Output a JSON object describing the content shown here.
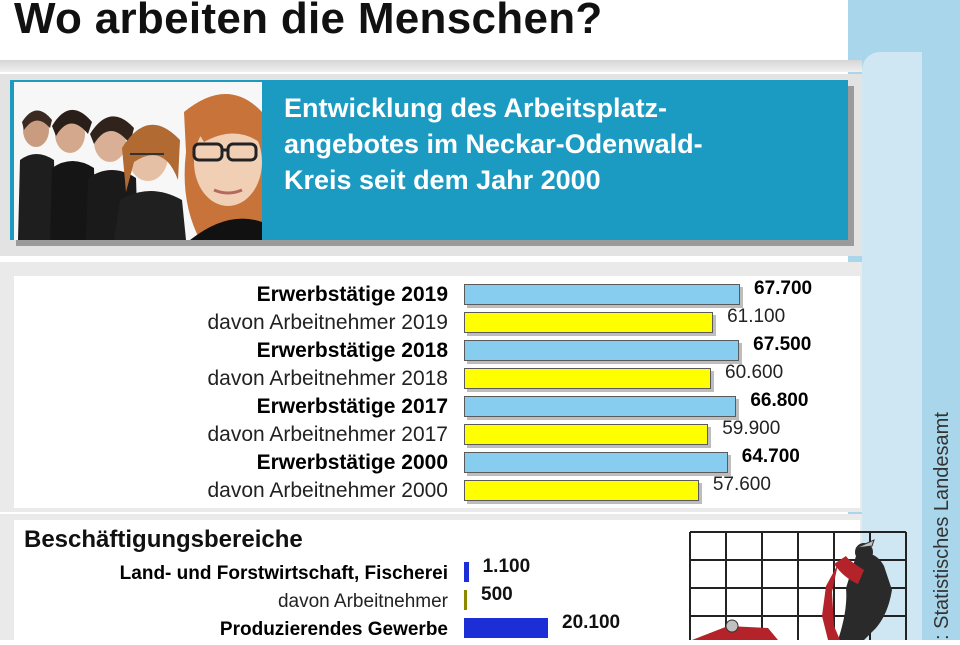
{
  "title": "Wo arbeiten die Menschen?",
  "subtitle": "Entwicklung des Arbeitsplatz-\nangebotes im Neckar-Odenwald-\nKreis seit dem Jahr 2000",
  "source": ": Statistisches Landesamt",
  "colors": {
    "header_blue": "#1b9ac2",
    "bar_light_blue": "#87cdef",
    "bar_yellow": "#ffff00",
    "bar_dark_blue": "#1c2fd6",
    "bar_olive": "#8a8a00"
  },
  "chart_data": [
    {
      "type": "bar",
      "orientation": "horizontal",
      "categories": [
        "Erwerbstätige 2019",
        "davon Arbeitnehmer 2019",
        "Erwerbstätige 2018",
        "davon Arbeitnehmer 2018",
        "Erwerbstätige 2017",
        "davon Arbeitnehmer 2017",
        "Erwerbstätige 2000",
        "davon Arbeitnehmer 2000"
      ],
      "values": [
        67700,
        61100,
        67500,
        60600,
        66800,
        59900,
        64700,
        57600
      ],
      "value_labels": [
        "67.700",
        "61.100",
        "67.500",
        "60.600",
        "66.800",
        "59.900",
        "64.700",
        "57.600"
      ],
      "bold": [
        true,
        false,
        true,
        false,
        true,
        false,
        true,
        false
      ],
      "bar_colors": [
        "#87cdef",
        "#ffff00",
        "#87cdef",
        "#ffff00",
        "#87cdef",
        "#ffff00",
        "#87cdef",
        "#ffff00"
      ],
      "title": "",
      "xlabel": "",
      "ylabel": "",
      "xlim": [
        0,
        70000
      ]
    },
    {
      "type": "bar",
      "orientation": "horizontal",
      "title": "Beschäftigungsbereiche",
      "categories": [
        "Land- und Forstwirtschaft, Fischerei",
        "davon Arbeitnehmer",
        "Produzierendes Gewerbe"
      ],
      "values": [
        1100,
        500,
        20100
      ],
      "value_labels": [
        "1.100",
        "500",
        "20.100"
      ],
      "bold": [
        true,
        false,
        true
      ],
      "bar_colors": [
        "#1c2fd6",
        "#8a8a00",
        "#1c2fd6"
      ],
      "xlabel": "",
      "ylabel": "",
      "xlim": [
        0,
        70000
      ]
    }
  ]
}
